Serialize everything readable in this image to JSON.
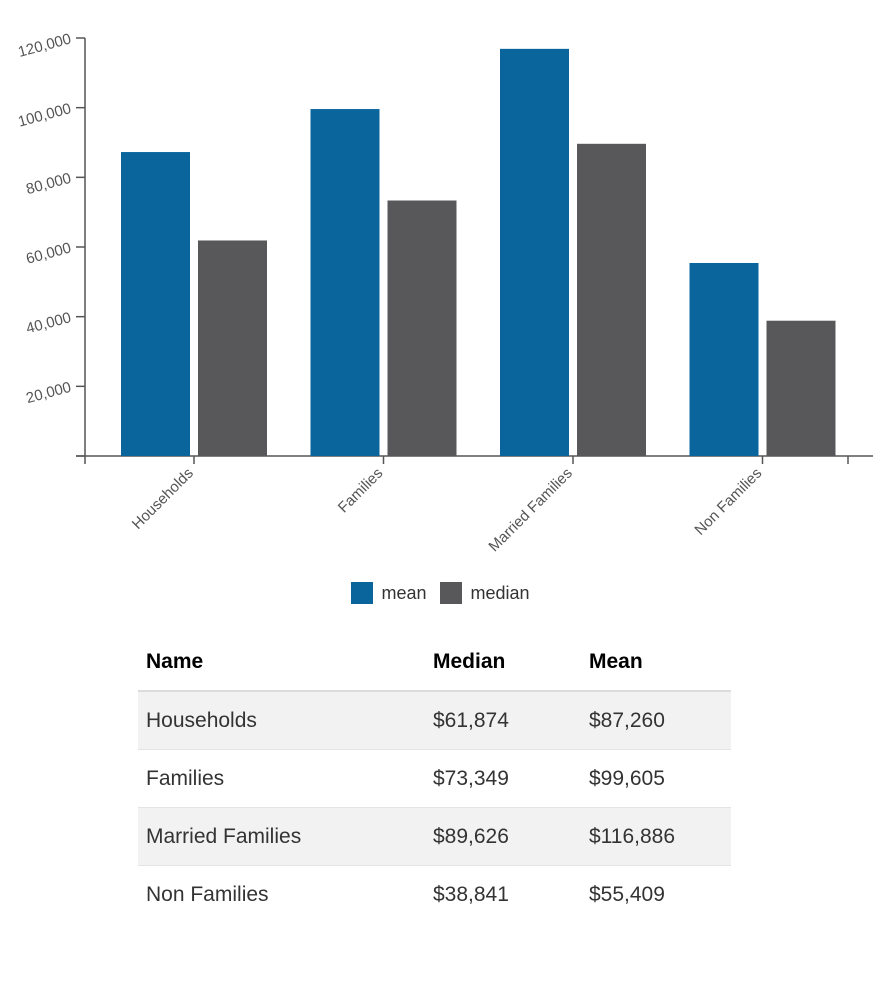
{
  "colors": {
    "mean": "#09659c",
    "median": "#58585a",
    "axis": "#555555"
  },
  "chart_data": {
    "type": "bar",
    "categories": [
      "Households",
      "Families",
      "Married Families",
      "Non Families"
    ],
    "series": [
      {
        "name": "mean",
        "values": [
          87260,
          99605,
          116886,
          55409
        ]
      },
      {
        "name": "median",
        "values": [
          61874,
          73349,
          89626,
          38841
        ]
      }
    ],
    "ylim": [
      0,
      120000
    ],
    "yticks": [
      20000,
      40000,
      60000,
      80000,
      100000,
      120000
    ],
    "ytick_labels": [
      "20,000",
      "40,000",
      "60,000",
      "80,000",
      "100,000",
      "120,000"
    ],
    "grid": false,
    "legend": "bottom-center"
  },
  "legend": {
    "mean_label": "mean",
    "median_label": "median"
  },
  "table": {
    "headers": [
      "Name",
      "Median",
      "Mean"
    ],
    "rows": [
      [
        "Households",
        "$61,874",
        "$87,260"
      ],
      [
        "Families",
        "$73,349",
        "$99,605"
      ],
      [
        "Married Families",
        "$89,626",
        "$116,886"
      ],
      [
        "Non Families",
        "$38,841",
        "$55,409"
      ]
    ]
  }
}
